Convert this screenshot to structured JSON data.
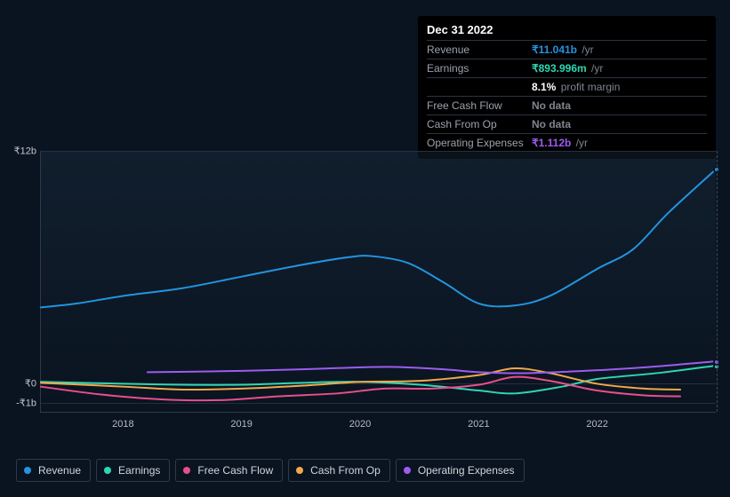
{
  "chart": {
    "type": "line",
    "background_color": "#0a1420",
    "plot_gradient_top": "rgba(30,50,70,0.35)",
    "axis_color": "#2e3a48",
    "grid_color": "#22303f",
    "label_color": "#c0c6cd",
    "label_fontsize": 11,
    "xlim_years": [
      2017.3,
      2023.0
    ],
    "ylim": [
      -1.5,
      12.0
    ],
    "y_ticks": [
      {
        "value": 12,
        "label": "₹12b"
      },
      {
        "value": 0,
        "label": "₹0"
      },
      {
        "value": -1,
        "label": "-₹1b"
      }
    ],
    "x_ticks": [
      {
        "value": 2018,
        "label": "2018"
      },
      {
        "value": 2019,
        "label": "2019"
      },
      {
        "value": 2020,
        "label": "2020"
      },
      {
        "value": 2021,
        "label": "2021"
      },
      {
        "value": 2022,
        "label": "2022"
      }
    ],
    "hover_x": 2023.0,
    "line_width": 2,
    "series": [
      {
        "key": "revenue",
        "name": "Revenue",
        "color": "#2394df",
        "points": [
          [
            2017.3,
            3.9
          ],
          [
            2017.6,
            4.1
          ],
          [
            2018.0,
            4.5
          ],
          [
            2018.5,
            4.9
          ],
          [
            2019.0,
            5.5
          ],
          [
            2019.5,
            6.1
          ],
          [
            2019.9,
            6.5
          ],
          [
            2020.1,
            6.55
          ],
          [
            2020.4,
            6.2
          ],
          [
            2020.7,
            5.2
          ],
          [
            2021.0,
            4.1
          ],
          [
            2021.3,
            4.0
          ],
          [
            2021.6,
            4.5
          ],
          [
            2022.0,
            5.9
          ],
          [
            2022.3,
            6.9
          ],
          [
            2022.6,
            8.8
          ],
          [
            2023.0,
            11.04
          ]
        ]
      },
      {
        "key": "earnings",
        "name": "Earnings",
        "color": "#2fd6b4",
        "points": [
          [
            2017.3,
            0.05
          ],
          [
            2018.0,
            -0.05
          ],
          [
            2018.5,
            -0.1
          ],
          [
            2019.0,
            -0.1
          ],
          [
            2019.5,
            0.0
          ],
          [
            2020.0,
            0.05
          ],
          [
            2020.5,
            -0.1
          ],
          [
            2021.0,
            -0.4
          ],
          [
            2021.3,
            -0.55
          ],
          [
            2021.7,
            -0.2
          ],
          [
            2022.0,
            0.2
          ],
          [
            2022.5,
            0.5
          ],
          [
            2023.0,
            0.89
          ]
        ]
      },
      {
        "key": "fcf",
        "name": "Free Cash Flow",
        "color": "#e84f8a",
        "points": [
          [
            2017.3,
            -0.2
          ],
          [
            2017.8,
            -0.6
          ],
          [
            2018.3,
            -0.85
          ],
          [
            2018.8,
            -0.9
          ],
          [
            2019.3,
            -0.7
          ],
          [
            2019.8,
            -0.55
          ],
          [
            2020.2,
            -0.3
          ],
          [
            2020.6,
            -0.3
          ],
          [
            2021.0,
            -0.1
          ],
          [
            2021.3,
            0.3
          ],
          [
            2021.6,
            0.1
          ],
          [
            2022.0,
            -0.4
          ],
          [
            2022.4,
            -0.65
          ],
          [
            2022.7,
            -0.7
          ]
        ]
      },
      {
        "key": "cfo",
        "name": "Cash From Op",
        "color": "#f0a94a",
        "points": [
          [
            2017.3,
            0.0
          ],
          [
            2018.0,
            -0.2
          ],
          [
            2018.5,
            -0.35
          ],
          [
            2019.0,
            -0.3
          ],
          [
            2019.5,
            -0.15
          ],
          [
            2020.0,
            0.05
          ],
          [
            2020.5,
            0.1
          ],
          [
            2021.0,
            0.4
          ],
          [
            2021.3,
            0.75
          ],
          [
            2021.6,
            0.5
          ],
          [
            2022.0,
            -0.05
          ],
          [
            2022.4,
            -0.3
          ],
          [
            2022.7,
            -0.35
          ]
        ]
      },
      {
        "key": "opex",
        "name": "Operating Expenses",
        "color": "#9c5cf0",
        "points": [
          [
            2018.2,
            0.55
          ],
          [
            2018.6,
            0.58
          ],
          [
            2019.0,
            0.62
          ],
          [
            2019.5,
            0.7
          ],
          [
            2020.0,
            0.8
          ],
          [
            2020.3,
            0.82
          ],
          [
            2020.7,
            0.7
          ],
          [
            2021.0,
            0.55
          ],
          [
            2021.4,
            0.5
          ],
          [
            2022.0,
            0.65
          ],
          [
            2022.5,
            0.85
          ],
          [
            2023.0,
            1.11
          ]
        ]
      }
    ]
  },
  "tooltip": {
    "date": "Dec 31 2022",
    "rows": [
      {
        "label": "Revenue",
        "value": "₹11.041b",
        "value_color": "#2394df",
        "unit": "/yr"
      },
      {
        "label": "Earnings",
        "value": "₹893.996m",
        "value_color": "#2fd6b4",
        "unit": "/yr"
      },
      {
        "label": "",
        "value": "8.1%",
        "value_color": "#ffffff",
        "unit": "profit margin"
      },
      {
        "label": "Free Cash Flow",
        "value": "No data",
        "value_color": "#7d858f",
        "unit": ""
      },
      {
        "label": "Cash From Op",
        "value": "No data",
        "value_color": "#7d858f",
        "unit": ""
      },
      {
        "label": "Operating Expenses",
        "value": "₹1.112b",
        "value_color": "#9c5cf0",
        "unit": "/yr"
      }
    ]
  },
  "legend": {
    "items": [
      {
        "key": "revenue",
        "label": "Revenue",
        "color": "#2394df"
      },
      {
        "key": "earnings",
        "label": "Earnings",
        "color": "#2fd6b4"
      },
      {
        "key": "fcf",
        "label": "Free Cash Flow",
        "color": "#e84f8a"
      },
      {
        "key": "cfo",
        "label": "Cash From Op",
        "color": "#f0a94a"
      },
      {
        "key": "opex",
        "label": "Operating Expenses",
        "color": "#9c5cf0"
      }
    ]
  }
}
